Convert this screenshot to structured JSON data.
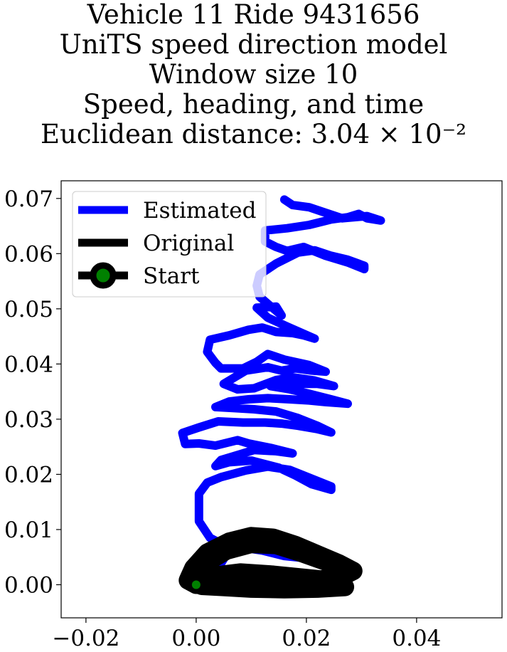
{
  "title_lines": [
    "Vehicle 11 Ride 9431656",
    "UniTS speed direction model",
    "Window size 10",
    "Speed, heading, and time",
    "Euclidean distance: 3.04 × 10⁻²"
  ],
  "chart_data": {
    "type": "line",
    "title": "Vehicle 11 Ride 9431656 UniTS speed direction model Window size 10 Speed, heading, and time Euclidean distance: 3.04 × 10⁻²",
    "xlabel": "",
    "ylabel": "",
    "xlim": [
      -0.0245,
      0.0555
    ],
    "ylim": [
      -0.006,
      0.0732
    ],
    "xticks": [
      -0.02,
      0.0,
      0.02,
      0.04
    ],
    "xtick_labels": [
      "−0.02",
      "0.00",
      "0.02",
      "0.04"
    ],
    "yticks": [
      0.0,
      0.01,
      0.02,
      0.03,
      0.04,
      0.05,
      0.06,
      0.07
    ],
    "ytick_labels": [
      "0.00",
      "0.01",
      "0.02",
      "0.03",
      "0.04",
      "0.05",
      "0.06",
      "0.07"
    ],
    "grid": false,
    "legend_position": "top-left",
    "legend": [
      "Estimated",
      "Original",
      "Start"
    ],
    "colors": {
      "estimated": "#0000ff",
      "original": "#000000",
      "start_marker": "#008000"
    },
    "series": [
      {
        "name": "Estimated",
        "points": [
          [
            0.0,
            0.0
          ],
          [
            0.002,
            0.0012
          ],
          [
            0.004,
            0.003
          ],
          [
            0.0055,
            0.0055
          ],
          [
            0.008,
            0.0075
          ],
          [
            0.012,
            0.0072
          ],
          [
            0.016,
            0.0063
          ],
          [
            0.02,
            0.0057
          ],
          [
            0.0235,
            0.0052
          ],
          [
            0.02,
            0.0048
          ],
          [
            0.016,
            0.0052
          ],
          [
            0.012,
            0.0062
          ],
          [
            0.008,
            0.0068
          ],
          [
            0.005,
            0.0072
          ],
          [
            0.0025,
            0.0085
          ],
          [
            0.0005,
            0.0115
          ],
          [
            0.0005,
            0.014
          ],
          [
            0.0005,
            0.0165
          ],
          [
            0.002,
            0.0185
          ],
          [
            0.0045,
            0.0195
          ],
          [
            0.009,
            0.0207
          ],
          [
            0.013,
            0.0214
          ],
          [
            0.017,
            0.0208
          ],
          [
            0.021,
            0.0192
          ],
          [
            0.0245,
            0.0178
          ],
          [
            0.0245,
            0.0172
          ],
          [
            0.021,
            0.0182
          ],
          [
            0.018,
            0.0198
          ],
          [
            0.015,
            0.0212
          ],
          [
            0.01,
            0.0225
          ],
          [
            0.006,
            0.0222
          ],
          [
            0.0035,
            0.0215
          ],
          [
            0.0045,
            0.0226
          ],
          [
            0.0065,
            0.0232
          ],
          [
            0.0105,
            0.0244
          ],
          [
            0.0145,
            0.0242
          ],
          [
            0.0175,
            0.0238
          ],
          [
            0.0135,
            0.0248
          ],
          [
            0.0095,
            0.0256
          ],
          [
            0.0075,
            0.0262
          ],
          [
            0.0035,
            0.0252
          ],
          [
            0.0005,
            0.0256
          ],
          [
            -0.002,
            0.0255
          ],
          [
            -0.0025,
            0.0275
          ],
          [
            0.0005,
            0.0285
          ],
          [
            0.004,
            0.0296
          ],
          [
            0.0085,
            0.0294
          ],
          [
            0.0125,
            0.0294
          ],
          [
            0.0155,
            0.0292
          ],
          [
            0.0185,
            0.0288
          ],
          [
            0.022,
            0.0282
          ],
          [
            0.0245,
            0.0276
          ],
          [
            0.022,
            0.0288
          ],
          [
            0.0185,
            0.0302
          ],
          [
            0.0145,
            0.0314
          ],
          [
            0.0105,
            0.0318
          ],
          [
            0.007,
            0.032
          ],
          [
            0.0035,
            0.0322
          ],
          [
            0.006,
            0.0332
          ],
          [
            0.0095,
            0.0336
          ],
          [
            0.013,
            0.0338
          ],
          [
            0.017,
            0.0336
          ],
          [
            0.0205,
            0.0334
          ],
          [
            0.0235,
            0.0331
          ],
          [
            0.0275,
            0.0328
          ],
          [
            0.0245,
            0.0336
          ],
          [
            0.0205,
            0.0346
          ],
          [
            0.017,
            0.0354
          ],
          [
            0.0135,
            0.036
          ],
          [
            0.0155,
            0.0368
          ],
          [
            0.0185,
            0.0364
          ],
          [
            0.022,
            0.0364
          ],
          [
            0.025,
            0.036
          ],
          [
            0.0215,
            0.037
          ],
          [
            0.0175,
            0.0376
          ],
          [
            0.0145,
            0.0371
          ],
          [
            0.0105,
            0.0356
          ],
          [
            0.0075,
            0.0354
          ],
          [
            0.005,
            0.0364
          ],
          [
            0.007,
            0.0376
          ],
          [
            0.009,
            0.0388
          ],
          [
            0.013,
            0.0394
          ],
          [
            0.0155,
            0.0388
          ],
          [
            0.018,
            0.0392
          ],
          [
            0.021,
            0.0388
          ],
          [
            0.0235,
            0.0386
          ],
          [
            0.0205,
            0.0398
          ],
          [
            0.016,
            0.0408
          ],
          [
            0.013,
            0.0418
          ],
          [
            0.011,
            0.0404
          ],
          [
            0.0085,
            0.0392
          ],
          [
            0.0045,
            0.0392
          ],
          [
            0.0035,
            0.0402
          ],
          [
            0.002,
            0.0422
          ],
          [
            0.0025,
            0.0444
          ],
          [
            0.006,
            0.0452
          ],
          [
            0.0095,
            0.0462
          ],
          [
            0.012,
            0.0466
          ],
          [
            0.0145,
            0.0458
          ],
          [
            0.0175,
            0.0456
          ],
          [
            0.0195,
            0.0452
          ],
          [
            0.0215,
            0.0446
          ],
          [
            0.0165,
            0.0468
          ],
          [
            0.013,
            0.0484
          ],
          [
            0.011,
            0.0502
          ],
          [
            0.0145,
            0.0504
          ],
          [
            0.0155,
            0.0488
          ],
          [
            0.013,
            0.0509
          ],
          [
            0.0115,
            0.0522
          ],
          [
            0.011,
            0.0542
          ],
          [
            0.0115,
            0.0562
          ],
          [
            0.0145,
            0.0582
          ],
          [
            0.0185,
            0.0602
          ],
          [
            0.0215,
            0.0606
          ],
          [
            0.0245,
            0.0596
          ],
          [
            0.0275,
            0.0589
          ],
          [
            0.0305,
            0.0578
          ],
          [
            0.0305,
            0.0572
          ],
          [
            0.0275,
            0.0584
          ],
          [
            0.0235,
            0.0596
          ],
          [
            0.0195,
            0.0612
          ],
          [
            0.0165,
            0.0605
          ],
          [
            0.0145,
            0.0612
          ],
          [
            0.0125,
            0.0622
          ],
          [
            0.0125,
            0.0642
          ],
          [
            0.0165,
            0.0646
          ],
          [
            0.0205,
            0.0652
          ],
          [
            0.0245,
            0.0662
          ],
          [
            0.0275,
            0.0666
          ],
          [
            0.0295,
            0.0672
          ],
          [
            0.031,
            0.0664
          ],
          [
            0.0335,
            0.066
          ],
          [
            0.031,
            0.0668
          ],
          [
            0.0265,
            0.0664
          ],
          [
            0.0235,
            0.0674
          ],
          [
            0.0205,
            0.0684
          ],
          [
            0.0175,
            0.0688
          ],
          [
            0.016,
            0.0698
          ]
        ]
      },
      {
        "name": "Original",
        "points": [
          [
            0.0,
            0.0
          ],
          [
            -0.0015,
            0.0008
          ],
          [
            -0.0005,
            0.003
          ],
          [
            0.002,
            0.0058
          ],
          [
            0.006,
            0.0078
          ],
          [
            0.01,
            0.0088
          ],
          [
            0.014,
            0.0085
          ],
          [
            0.018,
            0.0072
          ],
          [
            0.022,
            0.0055
          ],
          [
            0.026,
            0.0038
          ],
          [
            0.0285,
            0.0025
          ],
          [
            0.0265,
            0.0015
          ],
          [
            0.022,
            0.0008
          ],
          [
            0.017,
            0.0007
          ],
          [
            0.012,
            0.0008
          ],
          [
            0.007,
            0.0007
          ],
          [
            0.003,
            0.0005
          ],
          [
            0.0,
            0.0
          ],
          [
            0.003,
            0.0016
          ],
          [
            0.008,
            0.0022
          ],
          [
            0.014,
            0.0018
          ],
          [
            0.02,
            0.0012
          ],
          [
            0.026,
            0.0006
          ],
          [
            0.027,
            -0.0004
          ],
          [
            0.022,
            -0.0007
          ],
          [
            0.016,
            -0.0008
          ],
          [
            0.01,
            -0.0007
          ],
          [
            0.005,
            -0.0004
          ],
          [
            0.001,
            -0.0002
          ],
          [
            -0.001,
            0.0008
          ],
          [
            0.0015,
            0.0038
          ],
          [
            0.0055,
            0.0062
          ],
          [
            0.01,
            0.0074
          ],
          [
            0.0145,
            0.0072
          ],
          [
            0.019,
            0.0058
          ],
          [
            0.0235,
            0.0042
          ],
          [
            0.0275,
            0.003
          ],
          [
            0.0245,
            0.0012
          ],
          [
            0.018,
            0.0003
          ],
          [
            0.011,
            0.0
          ],
          [
            0.004,
            0.0004
          ],
          [
            0.0,
            0.0
          ]
        ]
      },
      {
        "name": "Start",
        "points": [
          [
            0.0,
            0.0
          ]
        ]
      }
    ]
  }
}
